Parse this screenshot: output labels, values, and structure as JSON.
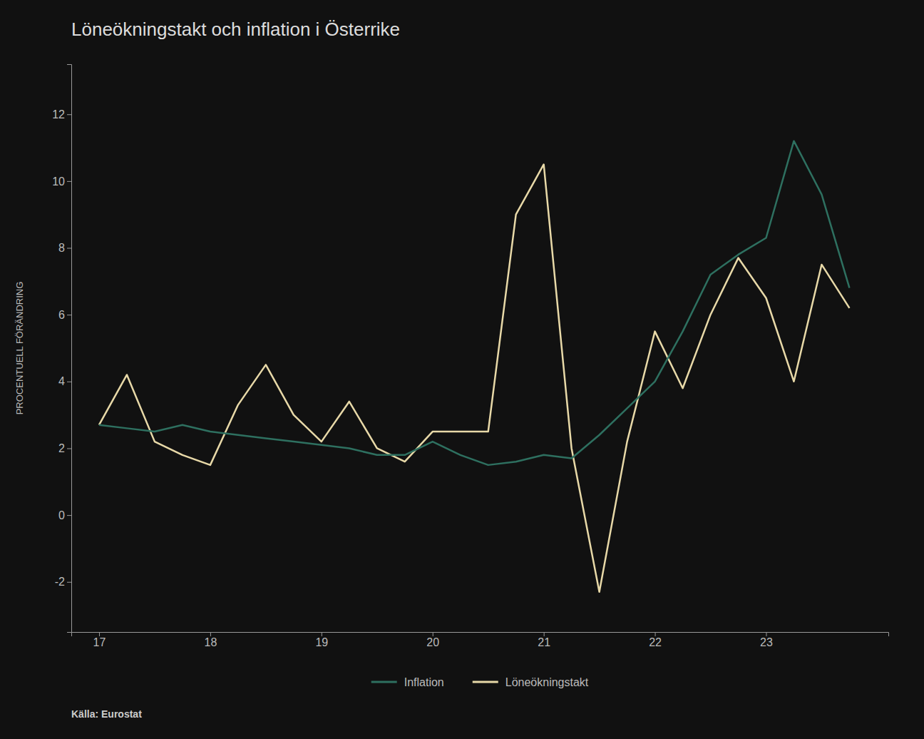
{
  "chart_data": {
    "type": "line",
    "title": "Löneökningstakt och inflation i Österrike",
    "ylabel": "PROCENTUELL FÖRÄNDRING",
    "source": "Källa: Eurostat",
    "x": [
      2017.0,
      2017.25,
      2017.5,
      2017.75,
      2018.0,
      2018.25,
      2018.5,
      2018.75,
      2019.0,
      2019.25,
      2019.5,
      2019.75,
      2020.0,
      2020.25,
      2020.5,
      2020.75,
      2021.0,
      2021.25,
      2021.5,
      2021.75,
      2022.0,
      2022.25,
      2022.5,
      2022.75,
      2023.0,
      2023.25,
      2023.5,
      2023.75
    ],
    "series": [
      {
        "name": "Inflation",
        "color": "#2e7060",
        "values": [
          2.7,
          2.6,
          2.5,
          2.7,
          2.5,
          2.4,
          2.3,
          2.2,
          2.1,
          2.0,
          1.8,
          1.8,
          2.2,
          1.8,
          1.5,
          1.6,
          1.8,
          1.7,
          2.4,
          3.2,
          4.0,
          5.5,
          7.2,
          7.8,
          8.3,
          11.2,
          9.6,
          6.8
        ]
      },
      {
        "name": "Löneökningstakt",
        "color": "#e8d9a8",
        "values": [
          2.7,
          4.2,
          2.2,
          1.8,
          1.5,
          3.3,
          4.5,
          3.0,
          2.2,
          3.4,
          2.0,
          1.6,
          2.5,
          2.5,
          2.5,
          9.0,
          10.5,
          2.0,
          -2.3,
          2.2,
          5.5,
          3.8,
          6.0,
          7.7,
          6.5,
          4.0,
          7.5,
          6.2
        ]
      }
    ],
    "xlim": [
      2016.75,
      2024.1
    ],
    "xticks": [
      {
        "value": 2017,
        "label": "17"
      },
      {
        "value": 2018,
        "label": "18"
      },
      {
        "value": 2019,
        "label": "19"
      },
      {
        "value": 2020,
        "label": "20"
      },
      {
        "value": 2021,
        "label": "21"
      },
      {
        "value": 2022,
        "label": "22"
      },
      {
        "value": 2023,
        "label": "23"
      }
    ],
    "ylim": [
      -3.5,
      13.5
    ],
    "yticks": [
      -2,
      0,
      2,
      4,
      6,
      8,
      10,
      12
    ],
    "grid": false,
    "legend": "bottom"
  }
}
